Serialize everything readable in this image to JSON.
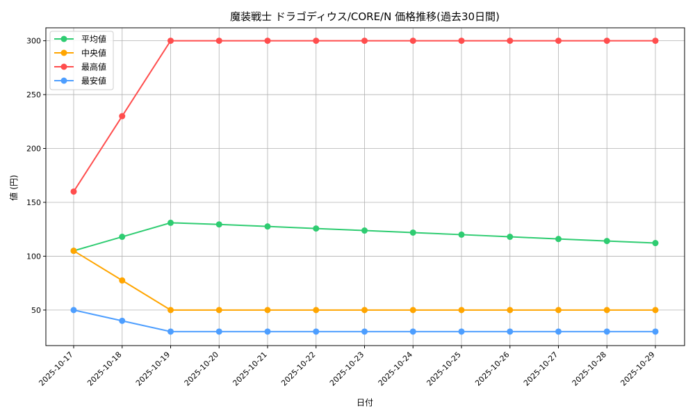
{
  "chart_data": {
    "type": "line",
    "title": "魔装戦士 ドラゴディウス/CORE/N 価格推移(過去30日間)",
    "xlabel": "日付",
    "ylabel": "値 (円)",
    "x": [
      "2025-10-17",
      "2025-10-18",
      "2025-10-19",
      "2025-10-20",
      "2025-10-21",
      "2025-10-22",
      "2025-10-23",
      "2025-10-24",
      "2025-10-25",
      "2025-10-26",
      "2025-10-27",
      "2025-10-28",
      "2025-10-29"
    ],
    "ylim": [
      17,
      312
    ],
    "yticks": [
      50,
      100,
      150,
      200,
      250,
      300
    ],
    "grid": true,
    "legend_position": "top-left",
    "series": [
      {
        "name": "平均値",
        "color": "#2ecc71",
        "values": [
          105,
          118,
          131,
          129.5,
          127.6,
          125.7,
          123.8,
          121.9,
          120,
          118,
          116,
          114.1,
          112.2
        ]
      },
      {
        "name": "中央値",
        "color": "#ffa500",
        "values": [
          105,
          77.5,
          50,
          50,
          50,
          50,
          50,
          50,
          50,
          50,
          50,
          50,
          50
        ]
      },
      {
        "name": "最高値",
        "color": "#ff4d4d",
        "values": [
          160,
          230,
          300,
          300,
          300,
          300,
          300,
          300,
          300,
          300,
          300,
          300,
          300
        ]
      },
      {
        "name": "最安値",
        "color": "#4d9eff",
        "values": [
          50,
          40,
          30,
          30,
          30,
          30,
          30,
          30,
          30,
          30,
          30,
          30,
          30
        ]
      }
    ]
  }
}
